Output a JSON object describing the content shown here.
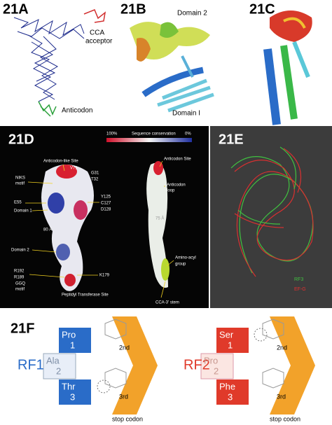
{
  "panel_a": {
    "label": "21A",
    "cca_label": [
      "CCA",
      "acceptor"
    ],
    "anticodon_label": "Anticodon"
  },
  "panel_b": {
    "label": "21B",
    "domain2_label": "Domain 2",
    "domain1_label": "Domain I"
  },
  "panel_c": {
    "label": "21C"
  },
  "panel_d": {
    "label": "21D",
    "scale": {
      "high": "100%",
      "title": "Sequence conservation",
      "low": "0%"
    },
    "left_labels": [
      "Anticodon-like Site",
      "V71",
      "NIKS",
      "motif",
      "G31",
      "T32",
      "E55",
      "Domain 1",
      "Y125",
      "C127",
      "D128",
      "80 Å",
      "Domain 2",
      "R192",
      "R189",
      "K179",
      "GGQ",
      "motif",
      "Peptidyl Transferase Site"
    ],
    "right_labels": [
      "Anticodon Site",
      "Anticodon",
      "loop",
      "75 Å",
      "Amino-acyl",
      "group",
      "CCA-3' stem"
    ]
  },
  "panel_e": {
    "label": "21E",
    "legend": [
      "RF3",
      "EF-G"
    ]
  },
  "panel_f": {
    "label": "21F",
    "rf1": {
      "name": "RF1",
      "residues": [
        [
          "Pro",
          "1"
        ],
        [
          "Ala",
          "2"
        ],
        [
          "Thr",
          "3"
        ]
      ],
      "positions": [
        "2nd",
        "3rd"
      ],
      "caption": "stop codon"
    },
    "rf2": {
      "name": "RF2",
      "residues": [
        [
          "Ser",
          "1"
        ],
        [
          "Pro",
          "2"
        ],
        [
          "Phe",
          "3"
        ]
      ],
      "positions": [
        "2nd",
        "3rd"
      ],
      "caption": "stop codon"
    }
  }
}
